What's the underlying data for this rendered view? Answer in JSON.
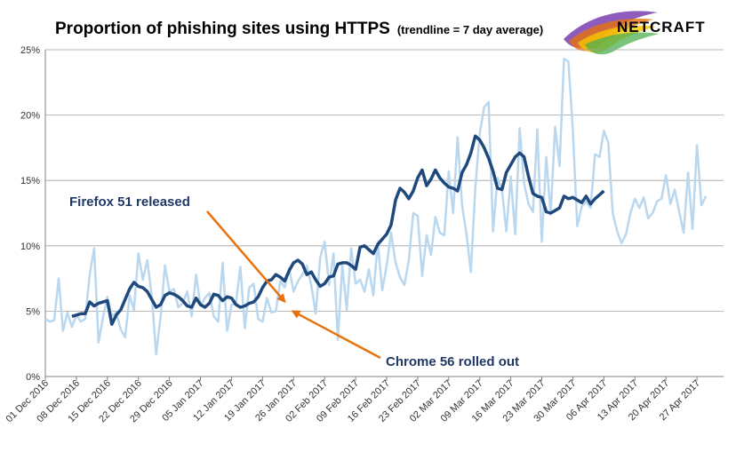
{
  "colors": {
    "raw_series": "#b9d7ee",
    "trend_series": "#1f497d",
    "arrow": "#e8720c",
    "annotation_text": "#1f3864",
    "gridline": "#a0a0a0"
  },
  "logo": {
    "text": "NETCRAFT",
    "icon": "netcraft-swoosh-logo"
  },
  "chart_data": {
    "type": "line",
    "title": "Proportion of phishing sites using HTTPS",
    "subtitle": "(trendline = 7 day average)",
    "xlabel": "",
    "ylabel": "",
    "ylim": [
      0,
      25
    ],
    "y_ticks": [
      "0%",
      "5%",
      "10%",
      "15%",
      "20%",
      "25%"
    ],
    "y_tick_values": [
      0,
      5,
      10,
      15,
      20,
      25
    ],
    "grid": true,
    "legend": "none",
    "x_tick_labels": [
      "01 Dec 2016",
      "08 Dec 2016",
      "15 Dec 2016",
      "22 Dec 2016",
      "29 Dec 2016",
      "05 Jan 2017",
      "12 Jan 2017",
      "19 Jan 2017",
      "26 Jan 2017",
      "02 Feb 2017",
      "09 Feb 2017",
      "16 Feb 2017",
      "23 Feb 2017",
      "02 Mar 2017",
      "09 Mar 2017",
      "16 Mar 2017",
      "23 Mar 2017",
      "30 Mar 2017",
      "06 Apr 2017",
      "13 Apr 2017",
      "20 Apr 2017",
      "27 Apr 2017"
    ],
    "x_start": "2016-12-01",
    "x_end": "2017-05-03",
    "series": [
      {
        "key": "daily",
        "values": [
          4.4,
          4.2,
          4.3,
          7.5,
          3.5,
          4.9,
          3.8,
          4.7,
          4.2,
          4.4,
          7.8,
          9.8,
          2.6,
          4.5,
          6.1,
          4.6,
          4.9,
          3.6,
          3.0,
          6.2,
          5.1,
          9.4,
          7.4,
          8.9,
          6.2,
          1.7,
          4.6,
          8.5,
          6.5,
          6.7,
          5.3,
          5.6,
          6.5,
          4.6,
          7.8,
          5.4,
          6.0,
          6.4,
          4.6,
          4.2,
          8.7,
          3.5,
          5.5,
          5.6,
          8.4,
          3.7,
          6.8,
          7.1,
          4.4,
          4.2,
          6.0,
          4.9,
          5.0,
          7.3,
          6.8,
          8.3,
          6.5,
          7.3,
          7.8,
          8.5,
          7.0,
          4.8,
          9.1,
          10.3,
          7.0,
          9.4,
          2.8,
          8.5,
          5.1,
          9.8,
          7.1,
          7.4,
          6.5,
          8.2,
          6.2,
          10.3,
          6.6,
          8.5,
          11.0,
          8.7,
          7.6,
          7.0,
          8.9,
          12.5,
          12.3,
          7.7,
          10.8,
          9.3,
          12.2,
          11.0,
          10.8,
          15.7,
          12.5,
          18.3,
          13.1,
          10.9,
          8.0,
          14.4,
          18.6,
          20.6,
          21.0,
          11.1,
          15.2,
          14.3,
          11.1,
          15.3,
          10.9,
          19.0,
          14.8,
          13.2,
          12.6,
          18.9,
          10.3,
          16.8,
          12.4,
          19.1,
          16.1,
          24.3,
          24.1,
          18.9,
          11.5,
          13.0,
          13.4,
          12.9,
          17.0,
          16.8,
          18.8,
          17.9,
          12.5,
          11.1,
          10.2,
          10.9,
          12.5,
          13.6,
          12.9,
          13.7,
          12.1,
          12.5,
          13.4,
          13.6,
          15.4,
          13.2,
          14.3,
          12.6,
          11.0,
          15.6,
          11.3,
          17.7,
          13.1,
          13.8
        ]
      },
      {
        "key": "trend",
        "start_index": 6,
        "values": [
          4.6,
          4.7,
          4.8,
          4.8,
          5.7,
          5.4,
          5.6,
          5.7,
          5.8,
          4.0,
          4.7,
          5.1,
          5.9,
          6.7,
          7.2,
          6.9,
          6.8,
          6.5,
          5.9,
          5.3,
          5.5,
          6.2,
          6.4,
          6.3,
          6.1,
          5.8,
          5.4,
          5.3,
          6.0,
          5.5,
          5.3,
          5.6,
          6.3,
          6.2,
          5.8,
          6.1,
          6.0,
          5.5,
          5.3,
          5.4,
          5.6,
          5.7,
          6.1,
          6.8,
          7.3,
          7.4,
          7.8,
          7.6,
          7.3,
          8.1,
          8.7,
          8.9,
          8.6,
          7.8,
          8.0,
          7.4,
          6.9,
          7.1,
          7.6,
          7.7,
          8.6,
          8.7,
          8.7,
          8.5,
          8.2,
          9.9,
          10.0,
          9.7,
          9.4,
          10.1,
          10.5,
          10.9,
          11.6,
          13.5,
          14.4,
          14.1,
          13.6,
          14.2,
          15.2,
          15.8,
          14.6,
          15.1,
          15.8,
          15.2,
          14.8,
          14.5,
          14.4,
          14.2,
          15.6,
          16.2,
          17.1,
          18.4,
          18.1,
          17.5,
          16.7,
          15.7,
          14.4,
          14.3,
          15.6,
          16.2,
          16.8,
          17.1,
          16.8,
          15.3,
          14.0,
          13.8,
          13.7,
          12.6,
          12.5,
          12.7,
          12.9,
          13.8,
          13.6,
          13.7,
          13.5,
          13.3,
          13.8,
          13.2,
          13.6,
          13.9,
          14.2
        ]
      }
    ],
    "annotations": [
      {
        "text": "Firefox 51 released",
        "date": "2017-01-24",
        "value": 5.6
      },
      {
        "text": "Chrome 56 rolled out",
        "date": "2017-01-25",
        "value": 5.2
      }
    ]
  }
}
